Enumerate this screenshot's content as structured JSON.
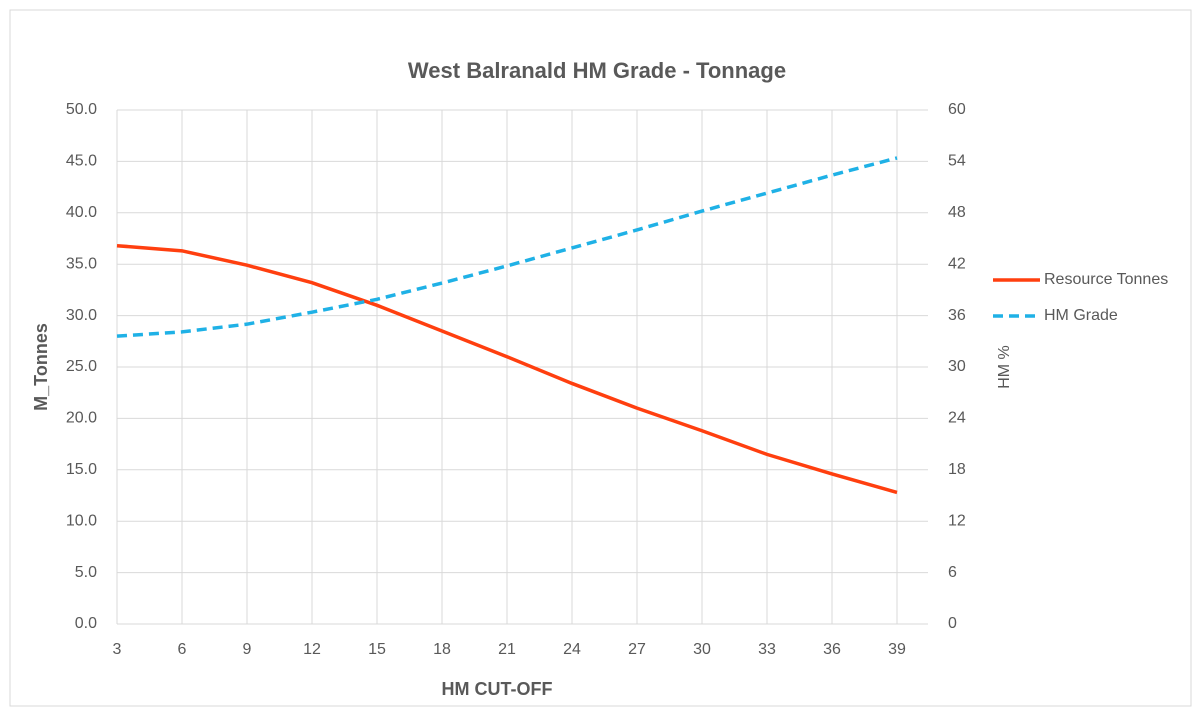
{
  "chart_data": {
    "type": "line",
    "title": "West Balranald HM Grade - Tonnage",
    "x_label": "HM CUT-OFF",
    "y_label": "M_Tonnes",
    "y2_label": "HM %",
    "x": [
      3,
      6,
      9,
      12,
      15,
      18,
      21,
      24,
      27,
      30,
      33,
      36,
      39
    ],
    "xlim": [
      3,
      39
    ],
    "xticks": [
      3,
      6,
      9,
      12,
      15,
      18,
      21,
      24,
      27,
      30,
      33,
      36,
      39
    ],
    "ylim": [
      0,
      50
    ],
    "yticks": [
      {
        "value": 0,
        "label": "0.0"
      },
      {
        "value": 5,
        "label": "5.0"
      },
      {
        "value": 10,
        "label": "10.0"
      },
      {
        "value": 15,
        "label": "15.0"
      },
      {
        "value": 20,
        "label": "20.0"
      },
      {
        "value": 25,
        "label": "25.0"
      },
      {
        "value": 30,
        "label": "30.0"
      },
      {
        "value": 35,
        "label": "35.0"
      },
      {
        "value": 40,
        "label": "40.0"
      },
      {
        "value": 45,
        "label": "45.0"
      },
      {
        "value": 50,
        "label": "50.0"
      }
    ],
    "y2lim": [
      0,
      60
    ],
    "y2ticks": [
      0,
      6,
      12,
      18,
      24,
      30,
      36,
      42,
      48,
      54,
      60
    ],
    "grid": true,
    "legend": "right",
    "series": [
      {
        "name": "Resource Tonnes",
        "color": "#ff3f0f",
        "dashed": false,
        "values": [
          36.8,
          36.3,
          34.9,
          33.2,
          31.0,
          28.5,
          26.0,
          23.4,
          21.0,
          18.8,
          16.5,
          14.6,
          12.8
        ]
      },
      {
        "name": "HM Grade",
        "color": "#1fb1e6",
        "dashed": true,
        "axis": "y2",
        "values": [
          33.6,
          34.1,
          35.0,
          36.4,
          37.9,
          39.8,
          41.8,
          43.9,
          46.0,
          48.2,
          50.3,
          52.4,
          54.4
        ]
      }
    ]
  }
}
